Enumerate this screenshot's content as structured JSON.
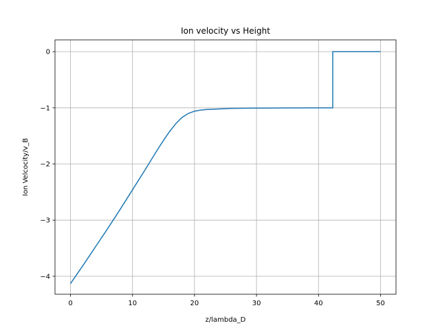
{
  "chart_data": {
    "type": "line",
    "title": "Ion velocity vs Height",
    "xlabel": "z/lambda_D",
    "ylabel": "Ion Velcocity/v_B",
    "xlim": [
      -2.5,
      52.5
    ],
    "ylim": [
      -4.32,
      0.21
    ],
    "xticks": [
      0,
      10,
      20,
      30,
      40,
      50
    ],
    "yticks": [
      0,
      -1,
      -2,
      -3,
      -4
    ],
    "grid": true,
    "series_color": "#1f77b4",
    "series": [
      {
        "x": [
          0,
          2,
          4,
          6,
          8,
          10,
          12,
          14,
          15,
          16,
          17,
          18,
          19,
          20,
          21,
          22,
          24,
          26,
          30,
          35,
          40,
          42.3,
          42.3,
          50
        ],
        "y": [
          -4.13,
          -3.81,
          -3.48,
          -3.15,
          -2.81,
          -2.46,
          -2.11,
          -1.75,
          -1.58,
          -1.42,
          -1.28,
          -1.17,
          -1.1,
          -1.06,
          -1.04,
          -1.03,
          -1.02,
          -1.01,
          -1.005,
          -1.002,
          -1.0,
          -1.0,
          0,
          0
        ]
      }
    ]
  }
}
